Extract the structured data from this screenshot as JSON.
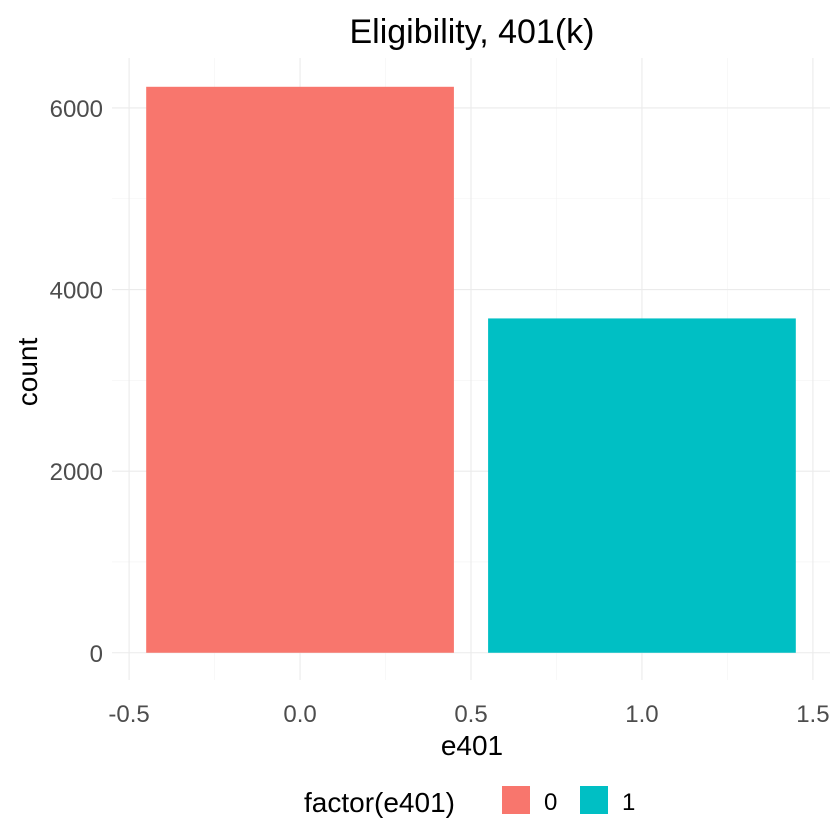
{
  "chart_data": {
    "type": "bar",
    "title": "Eligibility, 401(k)",
    "xlabel": "e401",
    "ylabel": "count",
    "x": [
      0,
      1
    ],
    "values": [
      6233,
      3682
    ],
    "bar_width": 0.9,
    "xlim": [
      -0.55,
      1.55
    ],
    "ylim": [
      -300,
      6550
    ],
    "x_ticks": [
      -0.5,
      0.0,
      0.5,
      1.0,
      1.5
    ],
    "x_tick_labels": [
      "-0.5",
      "0.0",
      "0.5",
      "1.0",
      "1.5"
    ],
    "y_ticks": [
      0,
      2000,
      4000,
      6000
    ],
    "y_tick_labels": [
      "0",
      "2000",
      "4000",
      "6000"
    ],
    "grid": true,
    "legend": {
      "title": "factor(e401)",
      "position": "bottom",
      "entries": [
        {
          "label": "0",
          "color": "#F8766D"
        },
        {
          "label": "1",
          "color": "#00BFC4"
        }
      ]
    },
    "colors": [
      "#F8766D",
      "#00BFC4"
    ]
  }
}
